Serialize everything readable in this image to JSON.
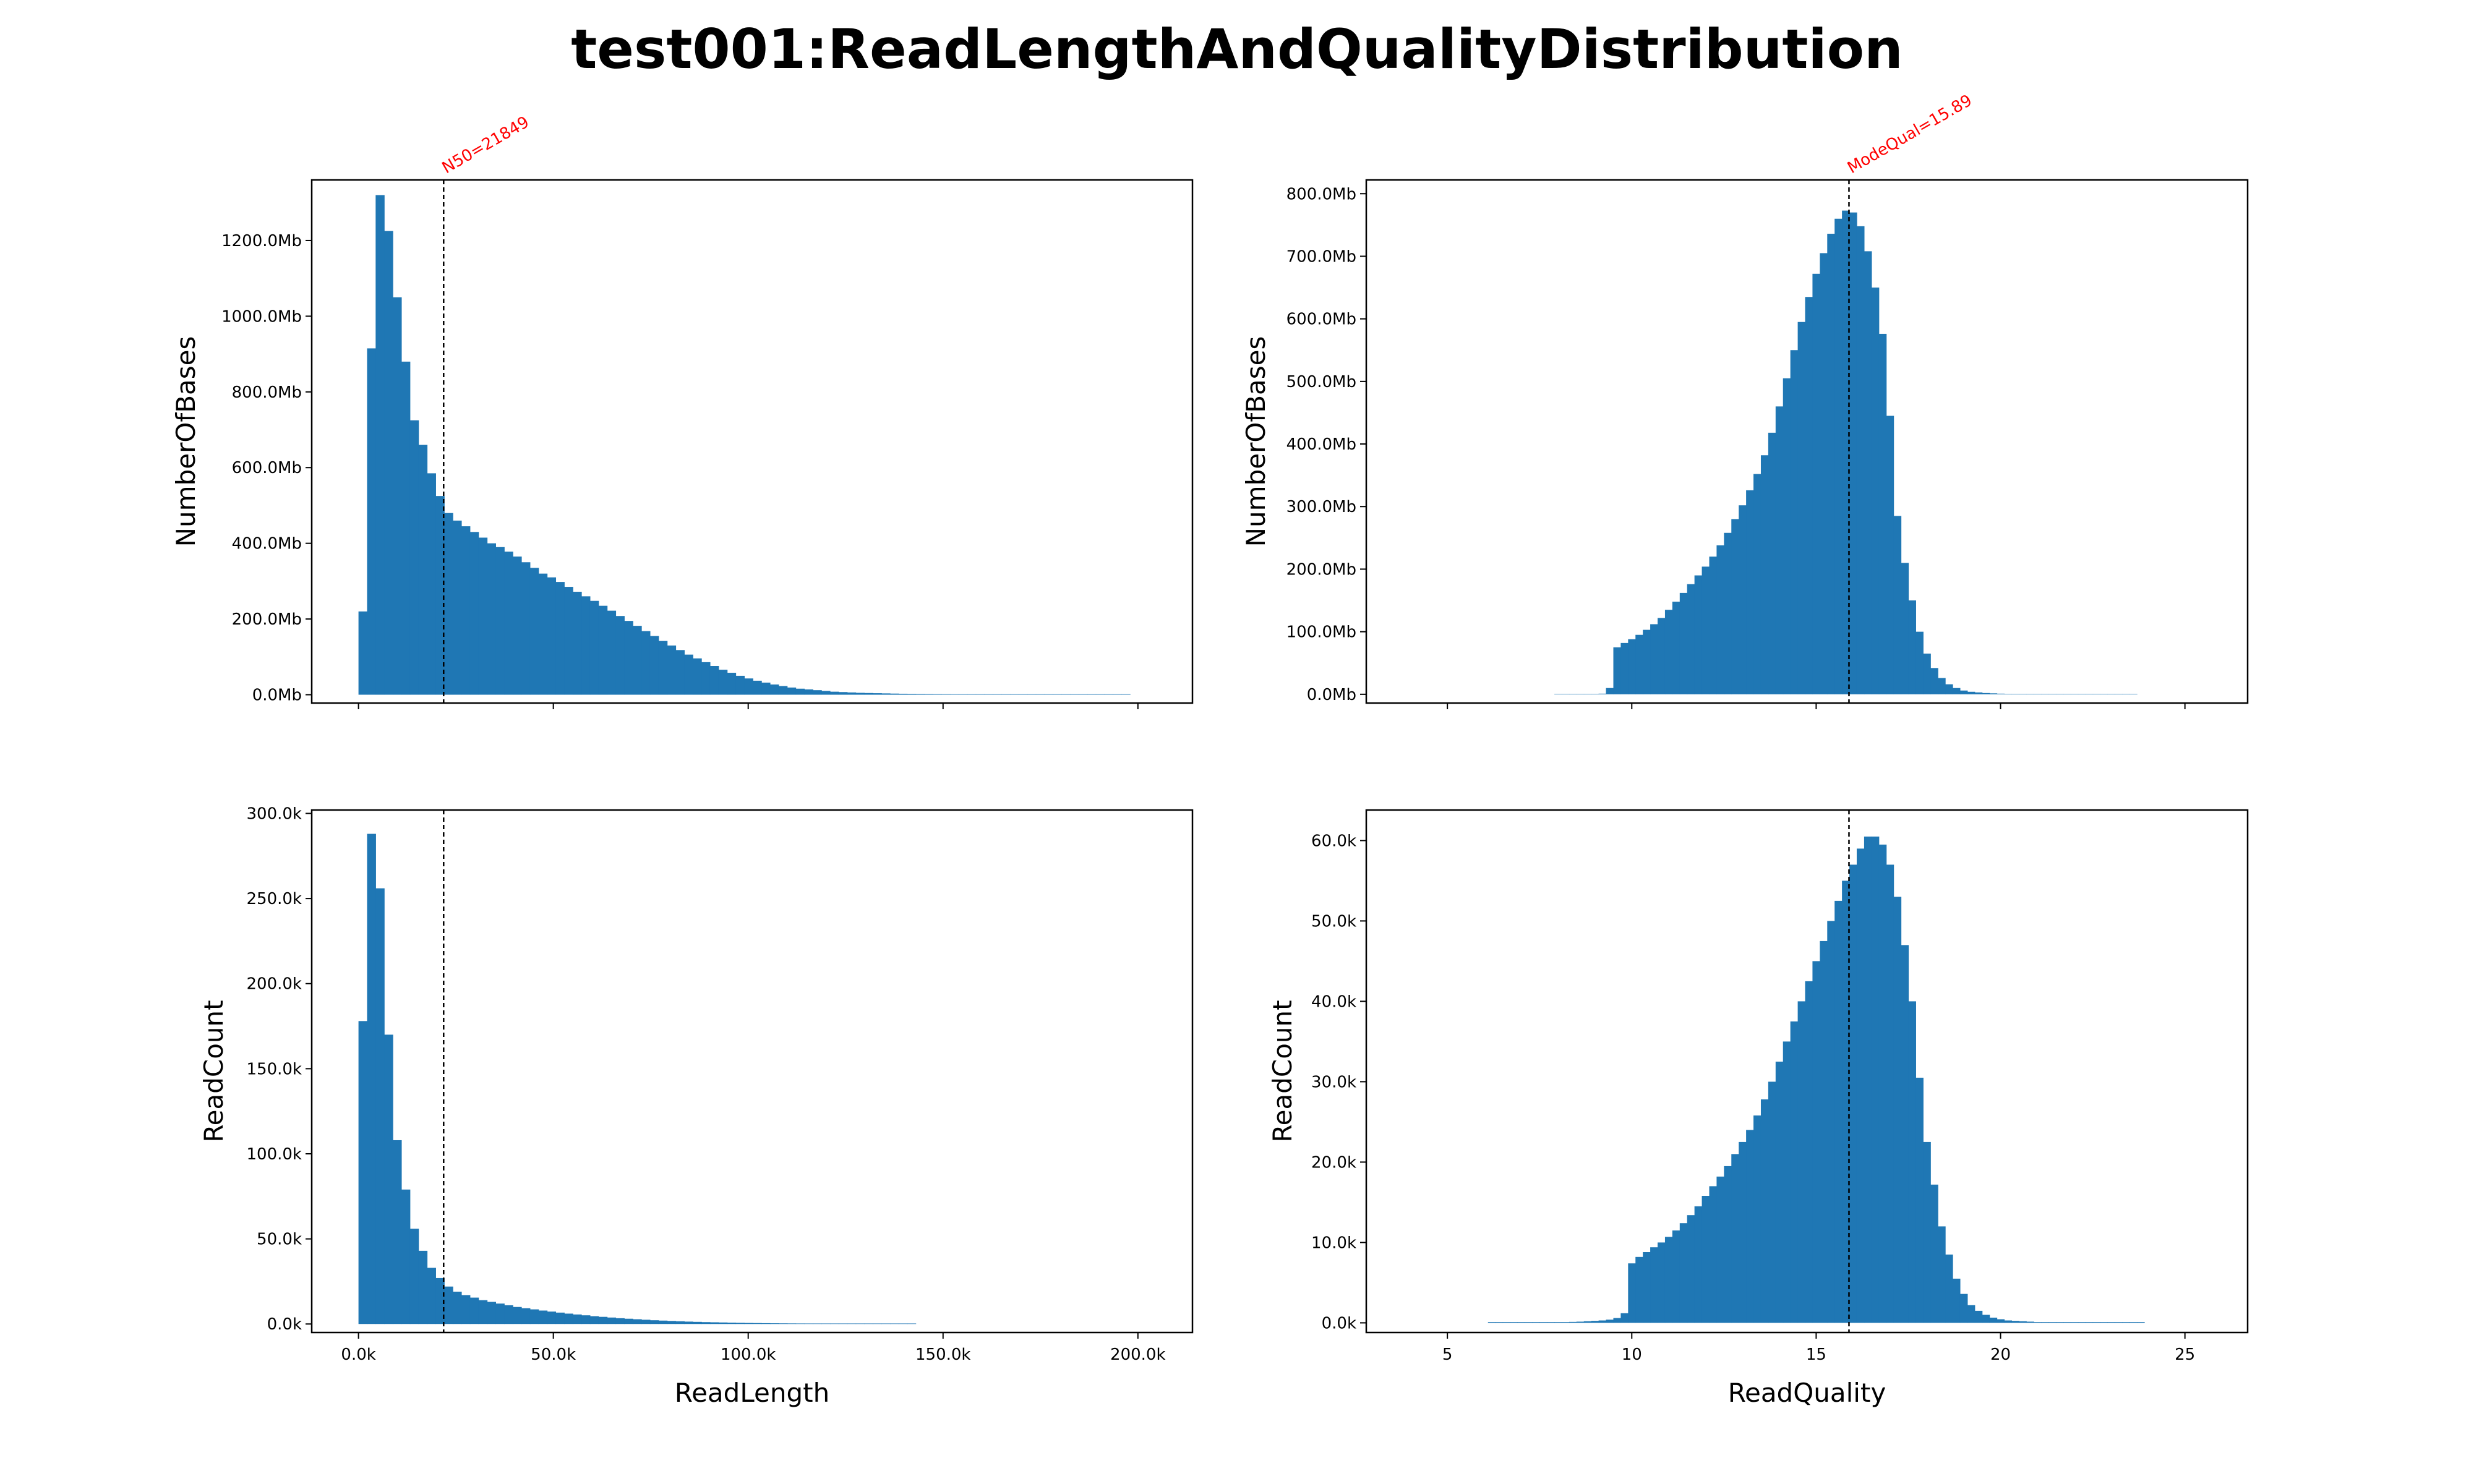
{
  "page": {
    "title": "test001:ReadLengthAndQualityDistribution"
  },
  "colors": {
    "bar": "#1f77b4",
    "annotation": "#ff0000",
    "refline": "#000000"
  },
  "chart_data": [
    {
      "id": "length-bases",
      "type": "bar",
      "ylabel": "NumberOfBases",
      "xlabel": "",
      "xlim": [
        -12000,
        214000
      ],
      "ylim": [
        -22,
        1360
      ],
      "yticks": [
        0,
        200,
        400,
        600,
        800,
        1000,
        1200
      ],
      "ytick_labels": [
        "0.0Mb",
        "200.0Mb",
        "400.0Mb",
        "600.0Mb",
        "800.0Mb",
        "1000.0Mb",
        "1200.0Mb"
      ],
      "xticks": [
        0,
        50000,
        100000,
        150000,
        200000
      ],
      "xtick_labels": [],
      "bin_start": 0,
      "bin_width": 2200,
      "values": [
        220,
        915,
        1320,
        1225,
        1050,
        880,
        725,
        660,
        585,
        525,
        480,
        460,
        445,
        430,
        415,
        400,
        390,
        378,
        365,
        350,
        335,
        320,
        310,
        298,
        285,
        272,
        260,
        248,
        235,
        222,
        208,
        195,
        182,
        168,
        155,
        142,
        130,
        118,
        106,
        96,
        86,
        76,
        66,
        58,
        50,
        43,
        37,
        32,
        27,
        23,
        19,
        16,
        14,
        12,
        10,
        8,
        7,
        6,
        5,
        4.5,
        4,
        3.5,
        3,
        2.6,
        2.3,
        2,
        1.8,
        1.6,
        1.4,
        1.2,
        1.1,
        1,
        0.9,
        0.8,
        0.7,
        0.6,
        0.5,
        0.45,
        0.4,
        0.35,
        0.3,
        0.3,
        0.3,
        0.3,
        0.3,
        0.3,
        0.3,
        0.3,
        0.3,
        0.3
      ],
      "vline": {
        "x": 21849,
        "label": "N50=21849"
      }
    },
    {
      "id": "quality-bases",
      "type": "bar",
      "ylabel": "NumberOfBases",
      "xlabel": "",
      "xlim": [
        2.8,
        26.7
      ],
      "ylim": [
        -14,
        822
      ],
      "yticks": [
        0,
        100,
        200,
        300,
        400,
        500,
        600,
        700,
        800
      ],
      "ytick_labels": [
        "0.0Mb",
        "100.0Mb",
        "200.0Mb",
        "300.0Mb",
        "400.0Mb",
        "500.0Mb",
        "600.0Mb",
        "700.0Mb",
        "800.0Mb"
      ],
      "xticks": [
        5,
        10,
        15,
        20,
        25
      ],
      "xtick_labels": [],
      "bin_start": 7.9,
      "bin_width": 0.2,
      "values": [
        0.5,
        0.5,
        0.5,
        0.5,
        0.5,
        0.5,
        1,
        10,
        75,
        82,
        88,
        95,
        103,
        112,
        122,
        135,
        148,
        162,
        176,
        190,
        204,
        220,
        238,
        258,
        280,
        302,
        326,
        352,
        382,
        418,
        460,
        505,
        550,
        595,
        635,
        672,
        705,
        736,
        760,
        773,
        770,
        748,
        708,
        650,
        576,
        445,
        285,
        210,
        150,
        100,
        65,
        42,
        26,
        16,
        10,
        6,
        4,
        3,
        2,
        1.5,
        1,
        0.8,
        0.6,
        0.5,
        0.5,
        0.4,
        0.4,
        0.3,
        0.3,
        0.3,
        0.3,
        0.3,
        0.3,
        0.3,
        0.3,
        0.3,
        0.3,
        0.3,
        0.3
      ],
      "vline": {
        "x": 15.89,
        "label": "ModeQual=15.89"
      }
    },
    {
      "id": "length-count",
      "type": "bar",
      "ylabel": "ReadCount",
      "xlabel": "ReadLength",
      "xlim": [
        -12000,
        214000
      ],
      "ylim": [
        -5,
        302
      ],
      "yticks": [
        0,
        50,
        100,
        150,
        200,
        250,
        300
      ],
      "ytick_labels": [
        "0.0k",
        "50.0k",
        "100.0k",
        "150.0k",
        "200.0k",
        "250.0k",
        "300.0k"
      ],
      "xticks": [
        0,
        50000,
        100000,
        150000,
        200000
      ],
      "xtick_labels": [
        "0.0k",
        "50.0k",
        "100.0k",
        "150.0k",
        "200.0k"
      ],
      "bin_start": 0,
      "bin_width": 2200,
      "values": [
        178,
        288,
        256,
        170,
        108,
        79,
        56,
        43,
        33,
        27,
        22,
        19,
        17,
        15.5,
        14,
        13,
        12,
        11,
        10,
        9.3,
        8.6,
        7.9,
        7.3,
        6.7,
        6.1,
        5.6,
        5.1,
        4.6,
        4.2,
        3.8,
        3.4,
        3.1,
        2.8,
        2.5,
        2.2,
        2,
        1.8,
        1.6,
        1.4,
        1.25,
        1.1,
        1,
        0.9,
        0.8,
        0.7,
        0.62,
        0.55,
        0.48,
        0.42,
        0.37,
        0.33,
        0.3,
        0.28,
        0.26,
        0.24,
        0.22,
        0.2,
        0.2,
        0.2,
        0.2,
        0.2,
        0.2,
        0.2,
        0.2,
        0.2
      ],
      "vline": {
        "x": 21849,
        "label": ""
      }
    },
    {
      "id": "quality-count",
      "type": "bar",
      "ylabel": "ReadCount",
      "xlabel": "ReadQuality",
      "xlim": [
        2.8,
        26.7
      ],
      "ylim": [
        -1.2,
        63.8
      ],
      "yticks": [
        0,
        10,
        20,
        30,
        40,
        50,
        60
      ],
      "ytick_labels": [
        "0.0k",
        "10.0k",
        "20.0k",
        "30.0k",
        "40.0k",
        "50.0k",
        "60.0k"
      ],
      "xticks": [
        5,
        10,
        15,
        20,
        25
      ],
      "xtick_labels": [
        "5",
        "10",
        "15",
        "20",
        "25"
      ],
      "bin_start": 6.1,
      "bin_width": 0.2,
      "values": [
        0.1,
        0.1,
        0.1,
        0.1,
        0.1,
        0.1,
        0.1,
        0.1,
        0.1,
        0.1,
        0.1,
        0.12,
        0.15,
        0.2,
        0.25,
        0.3,
        0.4,
        0.6,
        1.2,
        7.4,
        8.2,
        8.8,
        9.4,
        10,
        10.7,
        11.5,
        12.4,
        13.4,
        14.5,
        15.8,
        17,
        18.2,
        19.5,
        21,
        22.5,
        24,
        25.8,
        27.8,
        30,
        32.5,
        35,
        37.5,
        40,
        42.5,
        45,
        47.5,
        50,
        52.5,
        55,
        57,
        59,
        60.5,
        60.5,
        59.5,
        57,
        53,
        47,
        40,
        30.5,
        22.5,
        17.2,
        12,
        8.5,
        5.5,
        3.6,
        2.2,
        1.5,
        1,
        0.65,
        0.45,
        0.3,
        0.25,
        0.2,
        0.15,
        0.1,
        0.1,
        0.1,
        0.1,
        0.1,
        0.1,
        0.1,
        0.1,
        0.1,
        0.1,
        0.1,
        0.1,
        0.1,
        0.1,
        0.1
      ],
      "vline": {
        "x": 15.89,
        "label": ""
      }
    }
  ]
}
